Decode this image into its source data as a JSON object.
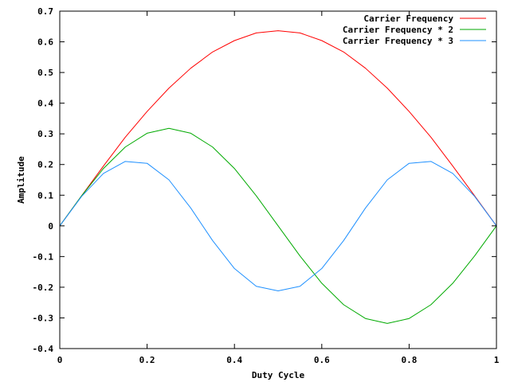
{
  "chart_data": {
    "type": "line",
    "title": "",
    "xlabel": "Duty Cycle",
    "ylabel": "Amplitude",
    "xlim": [
      0,
      1
    ],
    "ylim": [
      -0.4,
      0.7
    ],
    "xticks": [
      0,
      0.2,
      0.4,
      0.6,
      0.8,
      1
    ],
    "xtick_labels": [
      "0",
      "0.2",
      "0.4",
      "0.6",
      "0.8",
      "1"
    ],
    "yticks": [
      -0.4,
      -0.3,
      -0.2,
      -0.1,
      0,
      0.1,
      0.2,
      0.3,
      0.4,
      0.5,
      0.6,
      0.7
    ],
    "ytick_labels": [
      "-0.4",
      "-0.3",
      "-0.2",
      "-0.1",
      "0",
      "0.1",
      "0.2",
      "0.3",
      "0.4",
      "0.5",
      "0.6",
      "0.7"
    ],
    "grid": false,
    "legend_position": "top-right",
    "x": [
      0,
      0.05,
      0.1,
      0.15,
      0.2,
      0.25,
      0.3,
      0.35,
      0.4,
      0.45,
      0.5,
      0.55,
      0.6,
      0.65,
      0.7,
      0.75,
      0.8,
      0.85,
      0.9,
      0.95,
      1
    ],
    "series": [
      {
        "name": "Carrier Frequency",
        "color": "#ff0000",
        "values": [
          0,
          0.098,
          0.195,
          0.289,
          0.373,
          0.449,
          0.514,
          0.567,
          0.604,
          0.629,
          0.636,
          0.629,
          0.604,
          0.567,
          0.514,
          0.449,
          0.373,
          0.289,
          0.195,
          0.098,
          0
        ]
      },
      {
        "name": "Carrier Frequency * 2",
        "color": "#00aa00",
        "values": [
          0,
          0.098,
          0.187,
          0.257,
          0.302,
          0.318,
          0.302,
          0.257,
          0.187,
          0.098,
          0,
          -0.098,
          -0.187,
          -0.257,
          -0.302,
          -0.318,
          -0.302,
          -0.257,
          -0.187,
          -0.098,
          0
        ]
      },
      {
        "name": "Carrier Frequency * 3",
        "color": "#1e90ff",
        "values": [
          0,
          0.096,
          0.171,
          0.21,
          0.204,
          0.15,
          0.058,
          -0.048,
          -0.139,
          -0.197,
          -0.212,
          -0.197,
          -0.139,
          -0.048,
          0.058,
          0.15,
          0.204,
          0.21,
          0.171,
          0.096,
          0
        ]
      }
    ]
  }
}
